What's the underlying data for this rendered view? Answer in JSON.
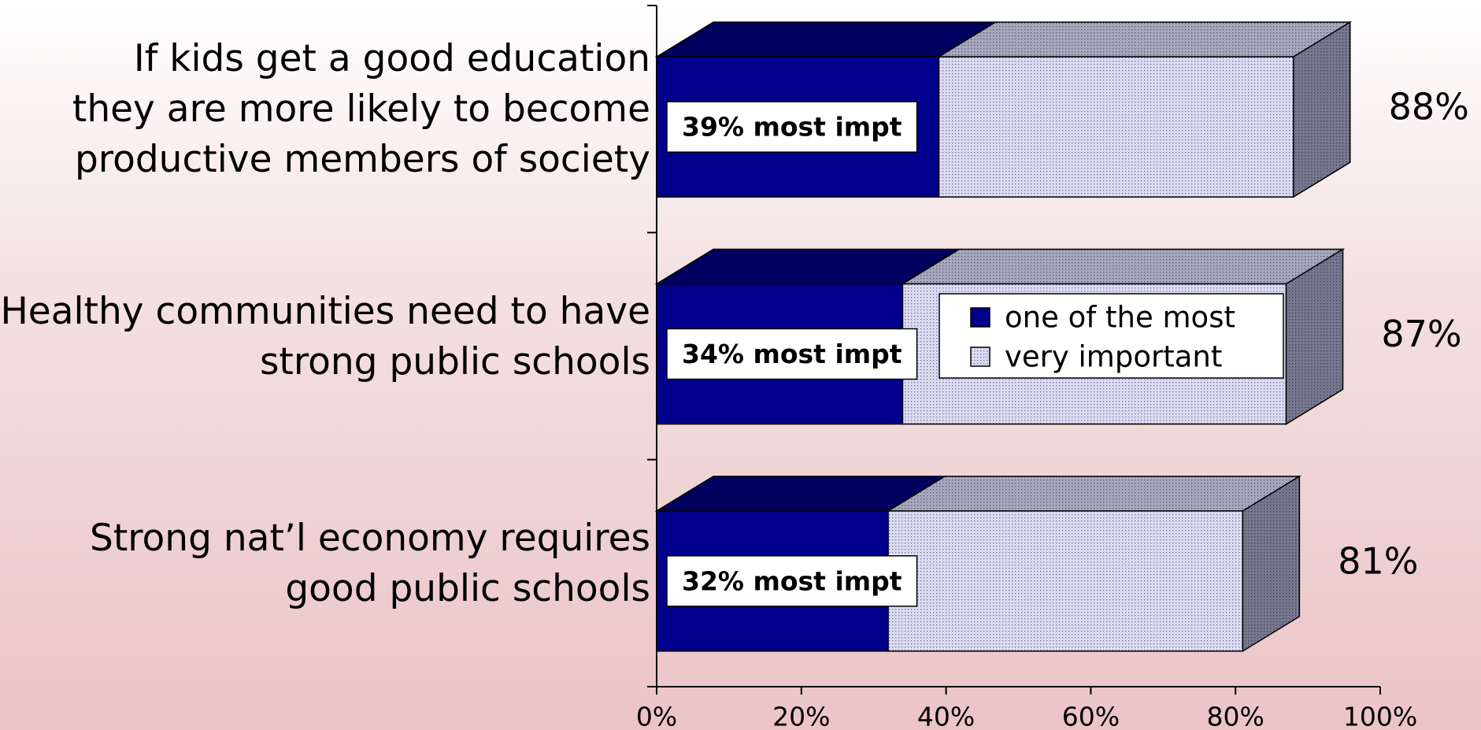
{
  "chart_data": {
    "type": "stacked-bar-3d",
    "categories": [
      "If kids get a good education\nthey are more likely to become\nproductive members of society",
      "Healthy communities need to have\nstrong public schools",
      "Strong nat’l economy requires\ngood public schools"
    ],
    "series": [
      {
        "name": "one of the most",
        "color": "#00008c",
        "values": [
          39,
          34,
          32
        ],
        "value_labels": [
          "39% most impt",
          "34% most impt",
          "32% most impt"
        ]
      },
      {
        "name": "very important",
        "color": "#d4d4ec",
        "values": [
          49,
          53,
          49
        ]
      }
    ],
    "totals": {
      "values": [
        88,
        87,
        81
      ],
      "value_labels": [
        "88%",
        "87%",
        "81%"
      ]
    },
    "xlim": [
      0,
      100
    ],
    "xticks": [
      {
        "value": 0,
        "label": "0%"
      },
      {
        "value": 20,
        "label": "20%"
      },
      {
        "value": 40,
        "label": "40%"
      },
      {
        "value": 60,
        "label": "60%"
      },
      {
        "value": 80,
        "label": "80%"
      },
      {
        "value": 100,
        "label": "100%"
      }
    ]
  }
}
